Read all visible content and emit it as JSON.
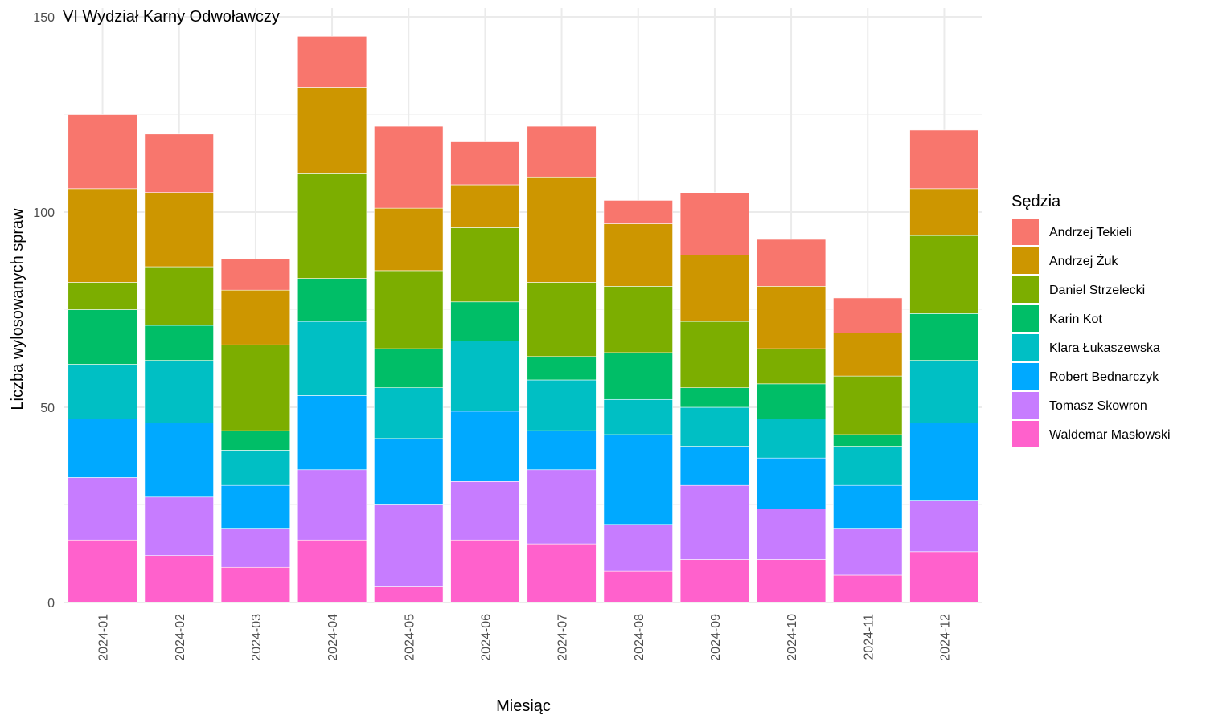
{
  "chart_data": {
    "type": "bar",
    "stacked": true,
    "title": "VI Wydział Karny Odwoławczy",
    "xlabel": "Miesiąc",
    "ylabel": "Liczba wylosowanych spraw",
    "ylim": [
      0,
      150
    ],
    "yticks": [
      0,
      50,
      100,
      150
    ],
    "grid": true,
    "legend_title": "Sędzia",
    "legend_position": "right",
    "categories": [
      "2024-01",
      "2024-02",
      "2024-03",
      "2024-04",
      "2024-05",
      "2024-06",
      "2024-07",
      "2024-08",
      "2024-09",
      "2024-10",
      "2024-11",
      "2024-12"
    ],
    "series": [
      {
        "name": "Waldemar Masłowski",
        "color": "#FF61CC",
        "values": [
          16,
          12,
          9,
          16,
          4,
          16,
          15,
          8,
          11,
          11,
          7,
          13
        ]
      },
      {
        "name": "Tomasz Skowron",
        "color": "#C77CFF",
        "values": [
          16,
          15,
          10,
          18,
          21,
          15,
          19,
          12,
          19,
          13,
          12,
          13
        ]
      },
      {
        "name": "Robert Bednarczyk",
        "color": "#00A9FF",
        "values": [
          15,
          19,
          11,
          19,
          17,
          18,
          10,
          23,
          10,
          13,
          11,
          20
        ]
      },
      {
        "name": "Klara Łukaszewska",
        "color": "#00BFC4",
        "values": [
          14,
          16,
          9,
          19,
          13,
          18,
          13,
          9,
          10,
          10,
          10,
          16
        ]
      },
      {
        "name": "Karin Kot",
        "color": "#00BE67",
        "values": [
          14,
          9,
          5,
          11,
          10,
          10,
          6,
          12,
          5,
          9,
          3,
          12
        ]
      },
      {
        "name": "Daniel Strzelecki",
        "color": "#7CAE00",
        "values": [
          7,
          15,
          22,
          27,
          20,
          19,
          19,
          17,
          17,
          9,
          15,
          20
        ]
      },
      {
        "name": "Andrzej Żuk",
        "color": "#CD9600",
        "values": [
          24,
          19,
          14,
          22,
          16,
          11,
          27,
          16,
          17,
          16,
          11,
          12
        ]
      },
      {
        "name": "Andrzej Tekieli",
        "color": "#F8766D",
        "values": [
          19,
          15,
          8,
          13,
          21,
          11,
          13,
          6,
          16,
          12,
          9,
          15
        ]
      }
    ],
    "legend_order": [
      "Andrzej Tekieli",
      "Andrzej Żuk",
      "Daniel Strzelecki",
      "Karin Kot",
      "Klara Łukaszewska",
      "Robert Bednarczyk",
      "Tomasz Skowron",
      "Waldemar Masłowski"
    ]
  }
}
